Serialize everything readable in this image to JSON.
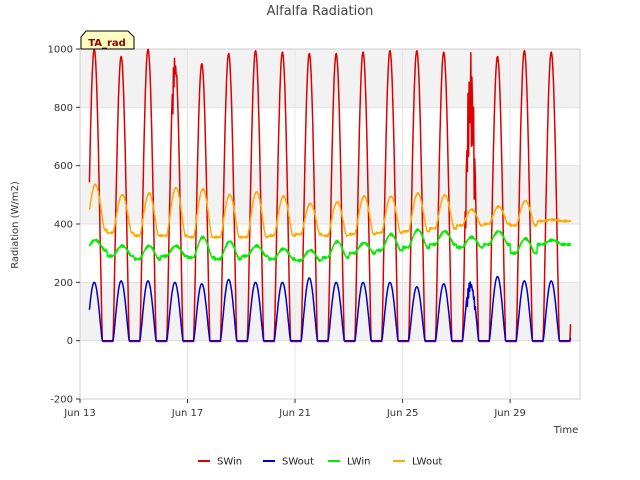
{
  "chart_data": {
    "type": "line",
    "title": "Alfalfa Radiation",
    "xlabel": "Time",
    "ylabel": "Radiation (W/m2)",
    "badge": "TA_rad",
    "ylim": [
      -200,
      1000
    ],
    "xlim": [
      0,
      18.6
    ],
    "x_unit": "days since Jun 13",
    "yticks": [
      -200,
      0,
      200,
      400,
      600,
      800,
      1000
    ],
    "xticks": [
      {
        "value": 0,
        "label": "Jun 13"
      },
      {
        "value": 4,
        "label": "Jun 17"
      },
      {
        "value": 8,
        "label": "Jun 21"
      },
      {
        "value": 12,
        "label": "Jun 25"
      },
      {
        "value": 16,
        "label": "Jun 29"
      }
    ],
    "grid": true,
    "legend_position": "bottom",
    "days": 18,
    "series": [
      {
        "name": "SWin",
        "color": "#dd0000",
        "peaks": [
          1000,
          975,
          1000,
          985,
          950,
          985,
          995,
          990,
          985,
          985,
          990,
          995,
          995,
          990,
          990,
          975,
          995,
          990
        ],
        "night": -3
      },
      {
        "name": "SWout",
        "color": "#0000cc",
        "peaks": [
          200,
          205,
          205,
          200,
          195,
          210,
          200,
          200,
          215,
          200,
          200,
          200,
          185,
          195,
          210,
          220,
          205,
          205
        ],
        "night": 0
      },
      {
        "name": "LWin",
        "color": "#00ee00",
        "peaks": [
          345,
          325,
          325,
          325,
          355,
          340,
          325,
          315,
          310,
          340,
          335,
          365,
          380,
          375,
          355,
          375,
          350,
          345
        ],
        "night": [
          310,
          290,
          280,
          290,
          285,
          280,
          290,
          280,
          275,
          285,
          300,
          310,
          320,
          330,
          320,
          330,
          300,
          330
        ]
      },
      {
        "name": "LWout",
        "color": "#ffaa00",
        "peaks": [
          535,
          500,
          505,
          525,
          520,
          500,
          510,
          495,
          470,
          475,
          495,
          495,
          505,
          500,
          450,
          460,
          480,
          415
        ],
        "night": [
          380,
          370,
          360,
          360,
          355,
          355,
          355,
          360,
          365,
          360,
          365,
          370,
          375,
          385,
          395,
          400,
          395,
          410
        ]
      }
    ]
  }
}
